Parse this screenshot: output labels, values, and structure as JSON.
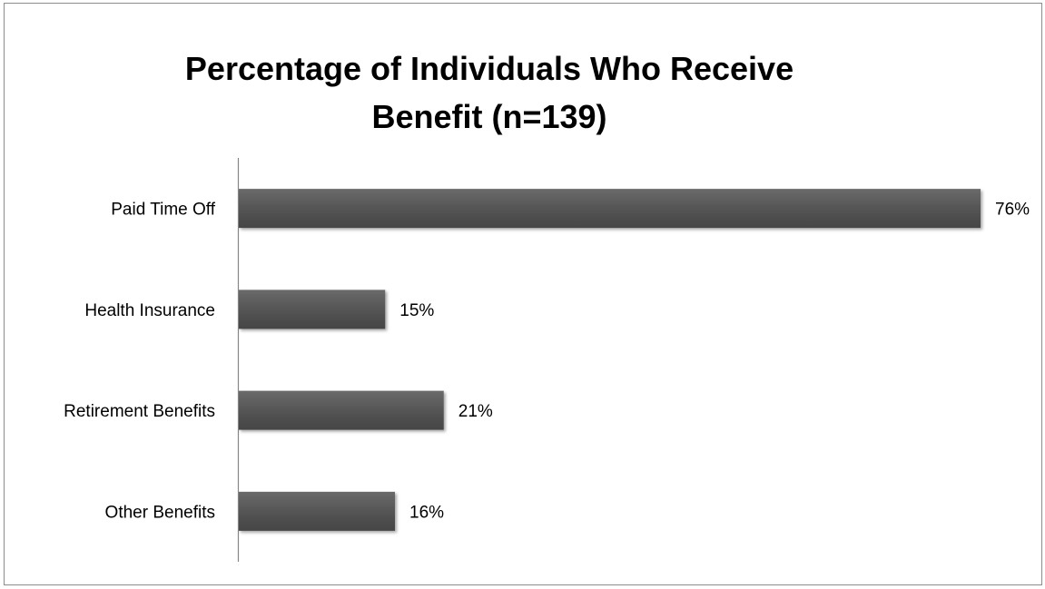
{
  "chart_data": {
    "type": "bar",
    "orientation": "horizontal",
    "title": "Percentage of Individuals Who Receive Benefit (n=139)",
    "title_lines": [
      "Percentage of Individuals Who Receive",
      "Benefit (n=139)"
    ],
    "categories": [
      "Paid Time Off",
      "Health Insurance",
      "Retirement Benefits",
      "Other Benefits"
    ],
    "values": [
      76,
      15,
      21,
      16
    ],
    "value_labels": [
      "76%",
      "15%",
      "21%",
      "16%"
    ],
    "unit": "%",
    "xlim": [
      0,
      76
    ],
    "bar_color": "#555555",
    "axis_color": "#868686",
    "grid": false,
    "legend": "none"
  }
}
